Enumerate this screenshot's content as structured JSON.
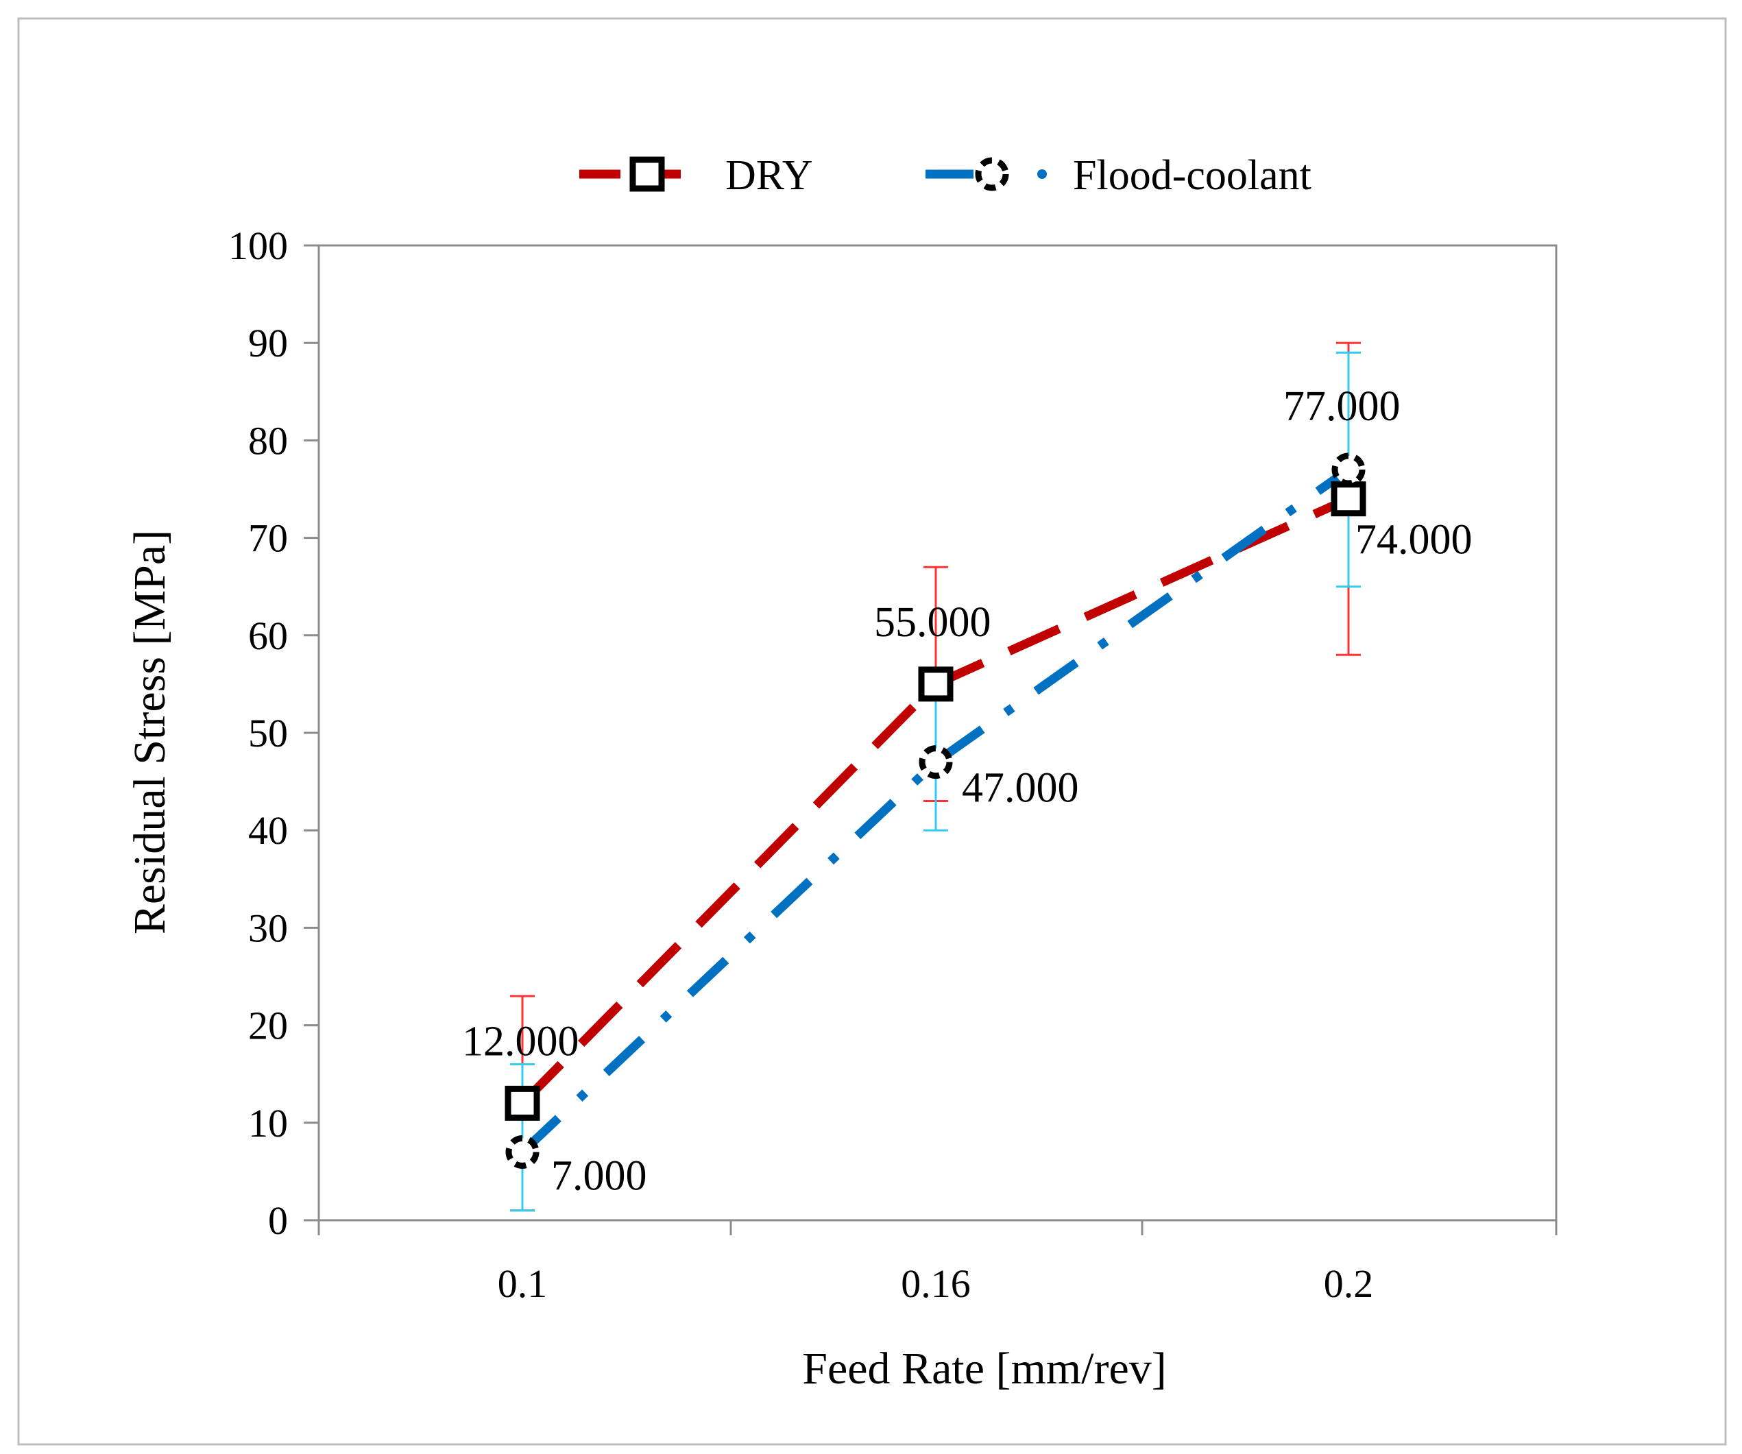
{
  "chart_data": {
    "type": "line",
    "title": "",
    "xlabel": "Feed Rate [mm/rev]",
    "ylabel": "Residual Stress [MPa]",
    "ylim": [
      0,
      100
    ],
    "yticks": [
      "0",
      "10",
      "20",
      "30",
      "40",
      "50",
      "60",
      "70",
      "80",
      "90",
      "100"
    ],
    "categories": [
      "0.1",
      "0.16",
      "0.2"
    ],
    "grid": false,
    "legend_position": "top",
    "series": [
      {
        "name": "DRY",
        "color": "#c00000",
        "line_style": "dashed",
        "marker": "square-icon",
        "values": [
          12,
          55,
          74
        ],
        "labels": [
          "12.000",
          "55.000",
          "74.000"
        ],
        "error_low": [
          1,
          43,
          58
        ],
        "error_high": [
          23,
          67,
          90
        ],
        "error_color": "#ff3333"
      },
      {
        "name": "Flood-coolant",
        "color": "#0070c0",
        "line_style": "dash-dot",
        "marker": "dashed-circle-icon",
        "values": [
          7,
          47,
          77
        ],
        "labels": [
          "7.000",
          "47.000",
          "77.000"
        ],
        "error_low": [
          1,
          40,
          65
        ],
        "error_high": [
          16,
          55,
          89
        ],
        "error_color": "#33ccee"
      }
    ]
  }
}
